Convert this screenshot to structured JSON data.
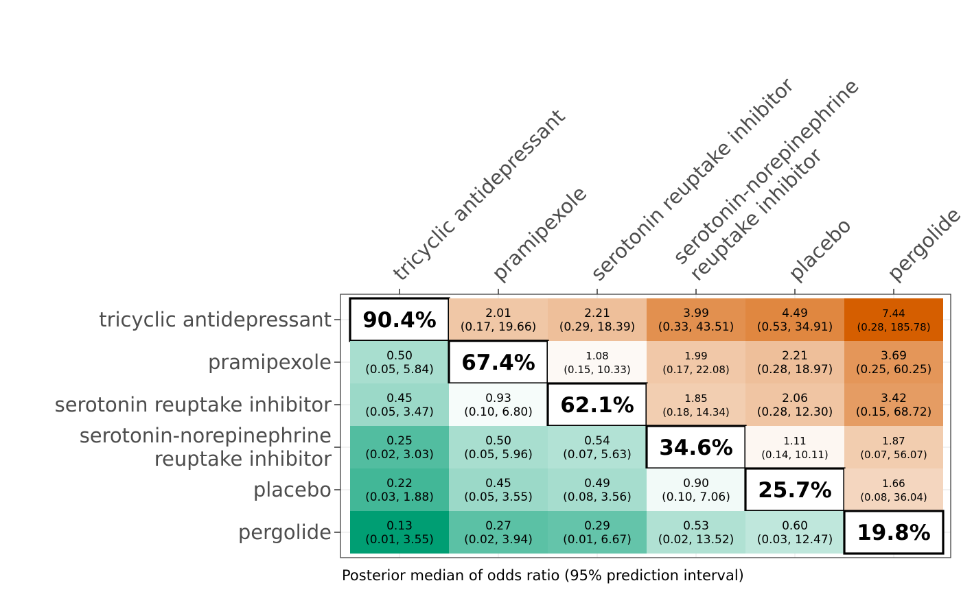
{
  "chart_data": {
    "type": "heatmap",
    "caption": "Posterior median of odds ratio (95% prediction interval)",
    "treatments": [
      [
        "tricyclic antidepressant"
      ],
      [
        "pramipexole"
      ],
      [
        "serotonin reuptake inhibitor"
      ],
      [
        "serotonin-norepinephrine",
        "reuptake inhibitor"
      ],
      [
        "placebo"
      ],
      [
        "pergolide"
      ]
    ],
    "diagonal": [
      "90.4%",
      "67.4%",
      "62.1%",
      "34.6%",
      "25.7%",
      "19.8%"
    ],
    "cells": [
      [
        null,
        {
          "median": 2.01,
          "label": "2.01",
          "ci": "(0.17, 19.66)"
        },
        {
          "median": 2.21,
          "label": "2.21",
          "ci": "(0.29, 18.39)"
        },
        {
          "median": 3.99,
          "label": "3.99",
          "ci": "(0.33, 43.51)"
        },
        {
          "median": 4.49,
          "label": "4.49",
          "ci": "(0.53, 34.91)"
        },
        {
          "median": 7.44,
          "label": "7.44",
          "ci": "(0.28, 185.78)"
        }
      ],
      [
        {
          "median": 0.5,
          "label": "0.50",
          "ci": "(0.05, 5.84)"
        },
        null,
        {
          "median": 1.08,
          "label": "1.08",
          "ci": "(0.15, 10.33)"
        },
        {
          "median": 1.99,
          "label": "1.99",
          "ci": "(0.17, 22.08)"
        },
        {
          "median": 2.21,
          "label": "2.21",
          "ci": "(0.28, 18.97)"
        },
        {
          "median": 3.69,
          "label": "3.69",
          "ci": "(0.25, 60.25)"
        }
      ],
      [
        {
          "median": 0.45,
          "label": "0.45",
          "ci": "(0.05, 3.47)"
        },
        {
          "median": 0.93,
          "label": "0.93",
          "ci": "(0.10, 6.80)"
        },
        null,
        {
          "median": 1.85,
          "label": "1.85",
          "ci": "(0.18, 14.34)"
        },
        {
          "median": 2.06,
          "label": "2.06",
          "ci": "(0.28, 12.30)"
        },
        {
          "median": 3.42,
          "label": "3.42",
          "ci": "(0.15, 68.72)"
        }
      ],
      [
        {
          "median": 0.25,
          "label": "0.25",
          "ci": "(0.02, 3.03)"
        },
        {
          "median": 0.5,
          "label": "0.50",
          "ci": "(0.05, 5.96)"
        },
        {
          "median": 0.54,
          "label": "0.54",
          "ci": "(0.07, 5.63)"
        },
        null,
        {
          "median": 1.11,
          "label": "1.11",
          "ci": "(0.14, 10.11)"
        },
        {
          "median": 1.87,
          "label": "1.87",
          "ci": "(0.07, 56.07)"
        }
      ],
      [
        {
          "median": 0.22,
          "label": "0.22",
          "ci": "(0.03, 1.88)"
        },
        {
          "median": 0.45,
          "label": "0.45",
          "ci": "(0.05, 3.55)"
        },
        {
          "median": 0.49,
          "label": "0.49",
          "ci": "(0.08, 3.56)"
        },
        {
          "median": 0.9,
          "label": "0.90",
          "ci": "(0.10, 7.06)"
        },
        null,
        {
          "median": 1.66,
          "label": "1.66",
          "ci": "(0.08, 36.04)"
        }
      ],
      [
        {
          "median": 0.13,
          "label": "0.13",
          "ci": "(0.01, 3.55)"
        },
        {
          "median": 0.27,
          "label": "0.27",
          "ci": "(0.02, 3.94)"
        },
        {
          "median": 0.29,
          "label": "0.29",
          "ci": "(0.01, 6.67)"
        },
        {
          "median": 0.53,
          "label": "0.53",
          "ci": "(0.02, 13.52)"
        },
        {
          "median": 0.6,
          "label": "0.60",
          "ci": "(0.03, 12.47)"
        },
        null
      ]
    ],
    "color_scale": {
      "low": "#009e73",
      "mid": "#ffffff",
      "high": "#d55e00",
      "low_value": 0.13,
      "high_value": 7.44,
      "log_scale": true
    },
    "grid": true,
    "legend": "none"
  }
}
